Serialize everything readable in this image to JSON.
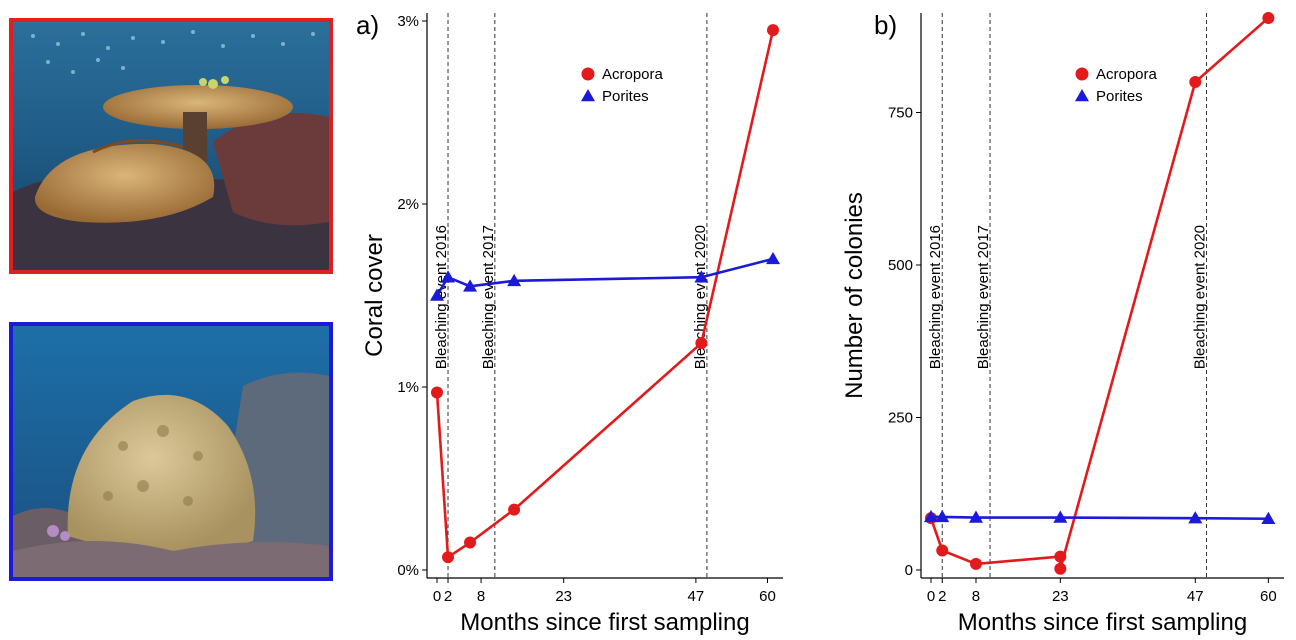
{
  "photos": [
    {
      "name": "acropora-table-coral-photo",
      "frame_color": "#e02020"
    },
    {
      "name": "porites-massive-coral-photo",
      "frame_color": "#1a1ad8"
    }
  ],
  "colors": {
    "acropora": "#e31a1c",
    "porites": "#1a1ad8"
  },
  "chart_data": [
    {
      "type": "line",
      "panel_label": "a)",
      "xlabel": "Months since first sampling",
      "ylabel": "Coral cover",
      "x_ticks": [
        0,
        2,
        8,
        23,
        47,
        60
      ],
      "y_ticks": [
        "0%",
        "1%",
        "2%",
        "3%"
      ],
      "ylim": [
        0,
        3
      ],
      "xlim": [
        0,
        61
      ],
      "legend_position": "top-right",
      "events": [
        {
          "x": 2,
          "label": "Bleaching event 2016"
        },
        {
          "x": 10.5,
          "label": "Bleaching event 2017"
        },
        {
          "x": 49,
          "label": "Bleaching event 2020"
        }
      ],
      "series": [
        {
          "name": "Acropora",
          "marker": "circle",
          "color": "#e31a1c",
          "x": [
            0,
            2,
            6,
            14,
            48,
            61
          ],
          "y": [
            0.97,
            0.07,
            0.15,
            0.33,
            1.24,
            2.95
          ]
        },
        {
          "name": "Porites",
          "marker": "triangle",
          "color": "#1a1ad8",
          "x": [
            0,
            2,
            6,
            14,
            48,
            61
          ],
          "y": [
            1.5,
            1.6,
            1.55,
            1.58,
            1.6,
            1.7
          ]
        }
      ]
    },
    {
      "type": "line",
      "panel_label": "b)",
      "xlabel": "Months since first sampling",
      "ylabel": "Number of colonies",
      "x_ticks": [
        0,
        2,
        8,
        23,
        47,
        60
      ],
      "y_ticks": [
        "0",
        "250",
        "500",
        "750"
      ],
      "ylim": [
        0,
        900
      ],
      "xlim": [
        0,
        61
      ],
      "legend_position": "top-right",
      "events": [
        {
          "x": 2,
          "label": "Bleaching event 2016"
        },
        {
          "x": 10.5,
          "label": "Bleaching event 2017"
        },
        {
          "x": 49,
          "label": "Bleaching event 2020"
        }
      ],
      "series": [
        {
          "name": "Acropora",
          "marker": "circle",
          "color": "#e31a1c",
          "x": [
            0,
            2,
            8,
            23,
            23,
            47,
            60
          ],
          "y": [
            85,
            32,
            10,
            22,
            2,
            800,
            905
          ]
        },
        {
          "name": "Porites",
          "marker": "triangle",
          "color": "#1a1ad8",
          "x": [
            0,
            2,
            8,
            23,
            47,
            60
          ],
          "y": [
            87,
            87,
            86,
            86,
            85,
            84
          ]
        }
      ]
    }
  ]
}
